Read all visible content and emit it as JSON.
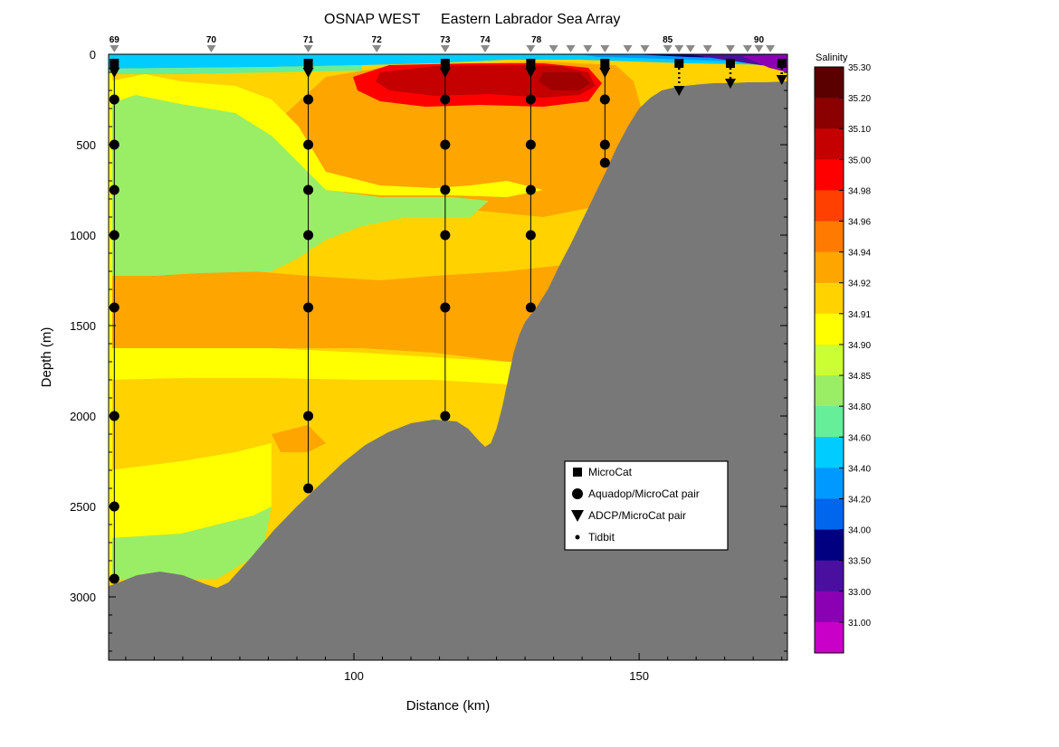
{
  "chart_data": {
    "type": "heatmap",
    "title_left": "OSNAP WEST",
    "title_right": "Eastern Labrador Sea Array",
    "xlabel": "Distance (km)",
    "ylabel": "Depth (m)",
    "xlim": [
      57,
      176
    ],
    "ylim": [
      3350,
      0
    ],
    "x_ticks": [
      {
        "value": 100,
        "label": "100"
      },
      {
        "value": 150,
        "label": "150"
      }
    ],
    "y_ticks": [
      {
        "value": 0,
        "label": "0"
      },
      {
        "value": 500,
        "label": "500"
      },
      {
        "value": 1000,
        "label": "1000"
      },
      {
        "value": 1500,
        "label": "1500"
      },
      {
        "value": 2000,
        "label": "2000"
      },
      {
        "value": 2500,
        "label": "2500"
      },
      {
        "value": 3000,
        "label": "3000"
      }
    ],
    "colorbar": {
      "title": "Salinity",
      "bins": [
        {
          "label": "35.30",
          "color": "#5a0000"
        },
        {
          "label": "35.20",
          "color": "#8b0000"
        },
        {
          "label": "35.10",
          "color": "#c40000"
        },
        {
          "label": "35.00",
          "color": "#ff0000"
        },
        {
          "label": "34.98",
          "color": "#ff4000"
        },
        {
          "label": "34.96",
          "color": "#ff7a00"
        },
        {
          "label": "34.94",
          "color": "#ffa500"
        },
        {
          "label": "34.92",
          "color": "#ffd200"
        },
        {
          "label": "34.91",
          "color": "#ffff00"
        },
        {
          "label": "34.90",
          "color": "#ccff33"
        },
        {
          "label": "34.85",
          "color": "#99ee66"
        },
        {
          "label": "34.80",
          "color": "#66ee99"
        },
        {
          "label": "34.60",
          "color": "#00ccff"
        },
        {
          "label": "34.40",
          "color": "#0099ff"
        },
        {
          "label": "34.20",
          "color": "#0066ee"
        },
        {
          "label": "34.00",
          "color": "#000080"
        },
        {
          "label": "33.50",
          "color": "#4b0fa0"
        },
        {
          "label": "33.00",
          "color": "#8c00b4"
        },
        {
          "label": "31.00",
          "color": "#c800c8"
        }
      ]
    },
    "stations_labeled": [
      {
        "label": "69",
        "km": 58
      },
      {
        "label": "70",
        "km": 75
      },
      {
        "label": "71",
        "km": 92
      },
      {
        "label": "72",
        "km": 104
      },
      {
        "label": "73",
        "km": 116
      },
      {
        "label": "74",
        "km": 123
      },
      {
        "label": "78",
        "km": 132
      },
      {
        "label": "85",
        "km": 155
      },
      {
        "label": "90",
        "km": 171
      }
    ],
    "station_marker_km": [
      58,
      75,
      92,
      104,
      116,
      123,
      131,
      135,
      138,
      141,
      144,
      148,
      151,
      155,
      157,
      159,
      162,
      166,
      169,
      171,
      173
    ],
    "moorings": [
      {
        "km": 58,
        "top": 50,
        "bottom": 2900,
        "instruments": [
          {
            "depth": 50,
            "type": "microcat"
          },
          {
            "depth": 100,
            "type": "adcp"
          },
          {
            "depth": 250,
            "type": "aquadop"
          },
          {
            "depth": 500,
            "type": "aquadop"
          },
          {
            "depth": 750,
            "type": "aquadop"
          },
          {
            "depth": 1000,
            "type": "aquadop"
          },
          {
            "depth": 1400,
            "type": "aquadop"
          },
          {
            "depth": 2000,
            "type": "aquadop"
          },
          {
            "depth": 2500,
            "type": "aquadop"
          },
          {
            "depth": 2900,
            "type": "aquadop"
          }
        ]
      },
      {
        "km": 92,
        "top": 50,
        "bottom": 2400,
        "instruments": [
          {
            "depth": 50,
            "type": "microcat"
          },
          {
            "depth": 100,
            "type": "adcp"
          },
          {
            "depth": 250,
            "type": "aquadop"
          },
          {
            "depth": 500,
            "type": "aquadop"
          },
          {
            "depth": 750,
            "type": "aquadop"
          },
          {
            "depth": 1000,
            "type": "aquadop"
          },
          {
            "depth": 1400,
            "type": "aquadop"
          },
          {
            "depth": 2000,
            "type": "aquadop"
          },
          {
            "depth": 2400,
            "type": "aquadop"
          }
        ]
      },
      {
        "km": 116,
        "top": 50,
        "bottom": 2000,
        "instruments": [
          {
            "depth": 50,
            "type": "microcat"
          },
          {
            "depth": 100,
            "type": "adcp"
          },
          {
            "depth": 250,
            "type": "aquadop"
          },
          {
            "depth": 500,
            "type": "aquadop"
          },
          {
            "depth": 750,
            "type": "aquadop"
          },
          {
            "depth": 1000,
            "type": "aquadop"
          },
          {
            "depth": 1400,
            "type": "aquadop"
          },
          {
            "depth": 2000,
            "type": "aquadop"
          }
        ]
      },
      {
        "km": 131,
        "top": 50,
        "bottom": 1400,
        "instruments": [
          {
            "depth": 50,
            "type": "microcat"
          },
          {
            "depth": 100,
            "type": "adcp"
          },
          {
            "depth": 250,
            "type": "aquadop"
          },
          {
            "depth": 500,
            "type": "aquadop"
          },
          {
            "depth": 750,
            "type": "aquadop"
          },
          {
            "depth": 1000,
            "type": "aquadop"
          },
          {
            "depth": 1400,
            "type": "aquadop"
          }
        ]
      },
      {
        "km": 144,
        "top": 50,
        "bottom": 600,
        "instruments": [
          {
            "depth": 50,
            "type": "microcat"
          },
          {
            "depth": 100,
            "type": "adcp"
          },
          {
            "depth": 250,
            "type": "aquadop"
          },
          {
            "depth": 500,
            "type": "aquadop"
          },
          {
            "depth": 600,
            "type": "aquadop"
          }
        ]
      },
      {
        "km": 157,
        "top": 50,
        "bottom": 200,
        "dotted": true,
        "instruments": [
          {
            "depth": 50,
            "type": "microcat"
          },
          {
            "depth": 200,
            "type": "adcp"
          }
        ]
      },
      {
        "km": 166,
        "top": 50,
        "bottom": 160,
        "dotted": true,
        "instruments": [
          {
            "depth": 50,
            "type": "microcat"
          },
          {
            "depth": 160,
            "type": "adcp"
          }
        ]
      },
      {
        "km": 175,
        "top": 50,
        "bottom": 140,
        "dotted": true,
        "instruments": [
          {
            "depth": 50,
            "type": "microcat"
          },
          {
            "depth": 140,
            "type": "adcp"
          }
        ]
      }
    ],
    "bathymetry": [
      [
        57,
        2940
      ],
      [
        58,
        2930
      ],
      [
        62,
        2880
      ],
      [
        66,
        2860
      ],
      [
        70,
        2880
      ],
      [
        74,
        2930
      ],
      [
        76,
        2950
      ],
      [
        78,
        2920
      ],
      [
        82,
        2780
      ],
      [
        86,
        2630
      ],
      [
        90,
        2500
      ],
      [
        94,
        2380
      ],
      [
        98,
        2260
      ],
      [
        102,
        2160
      ],
      [
        106,
        2090
      ],
      [
        110,
        2040
      ],
      [
        114,
        2020
      ],
      [
        118,
        2030
      ],
      [
        120,
        2070
      ],
      [
        122,
        2140
      ],
      [
        123,
        2170
      ],
      [
        124,
        2150
      ],
      [
        125,
        2070
      ],
      [
        126,
        1950
      ],
      [
        127,
        1800
      ],
      [
        128,
        1650
      ],
      [
        129,
        1550
      ],
      [
        130,
        1480
      ],
      [
        132,
        1400
      ],
      [
        134,
        1300
      ],
      [
        136,
        1170
      ],
      [
        138,
        1050
      ],
      [
        140,
        920
      ],
      [
        142,
        790
      ],
      [
        144,
        660
      ],
      [
        146,
        520
      ],
      [
        148,
        400
      ],
      [
        150,
        300
      ],
      [
        152,
        240
      ],
      [
        154,
        200
      ],
      [
        156,
        185
      ],
      [
        158,
        175
      ],
      [
        161,
        165
      ],
      [
        163,
        160
      ],
      [
        166,
        160
      ],
      [
        169,
        155
      ],
      [
        172,
        155
      ],
      [
        176,
        150
      ]
    ],
    "legend": {
      "items": [
        {
          "label": "MicroCat",
          "symbol": "square"
        },
        {
          "label": "Aquadop/MicroCat pair",
          "symbol": "circle"
        },
        {
          "label": "ADCP/MicroCat pair",
          "symbol": "triangle"
        },
        {
          "label": "Tidbit",
          "symbol": "small-dot"
        }
      ]
    }
  }
}
